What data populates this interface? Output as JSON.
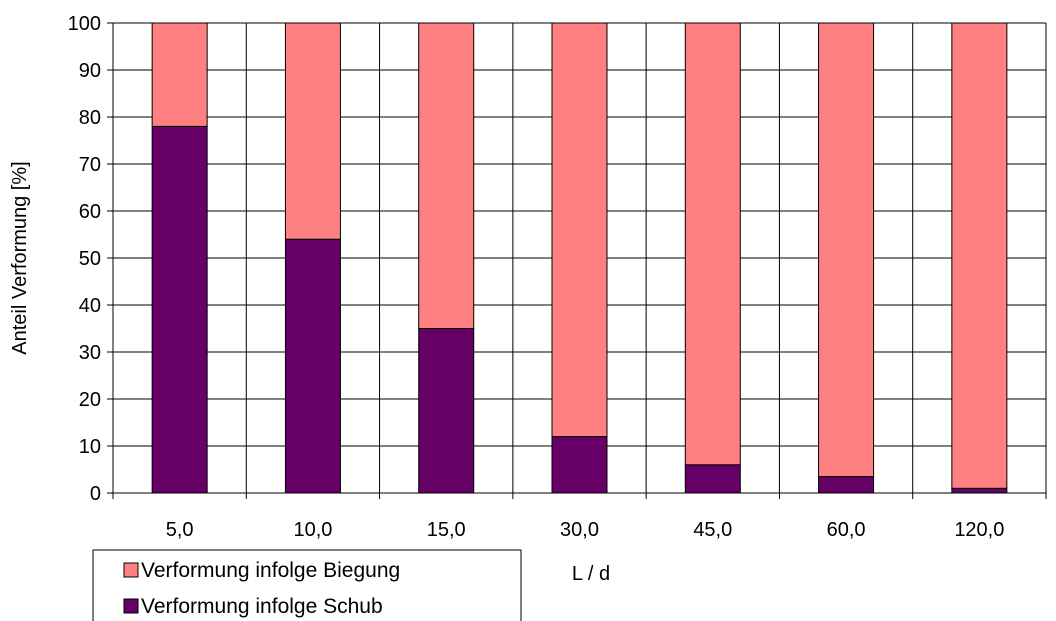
{
  "chart_data": {
    "type": "bar",
    "stacked": true,
    "categories": [
      "5,0",
      "10,0",
      "15,0",
      "30,0",
      "45,0",
      "60,0",
      "120,0"
    ],
    "series": [
      {
        "name": "Verformung infolge Schub",
        "color": "#660066",
        "values": [
          78,
          54,
          35,
          12,
          6,
          3.5,
          1
        ]
      },
      {
        "name": "Verformung infolge Biegung",
        "color": "#FF8080",
        "values": [
          22,
          46,
          65,
          88,
          94,
          96.5,
          99
        ]
      }
    ],
    "legend_order": [
      1,
      0
    ],
    "xlabel": "L / d",
    "ylabel": "Anteil Verformung [%]",
    "ylim": [
      0,
      100
    ],
    "yticks": [
      0,
      10,
      20,
      30,
      40,
      50,
      60,
      70,
      80,
      90,
      100
    ],
    "grid": true,
    "legend_position": "bottom-left"
  }
}
